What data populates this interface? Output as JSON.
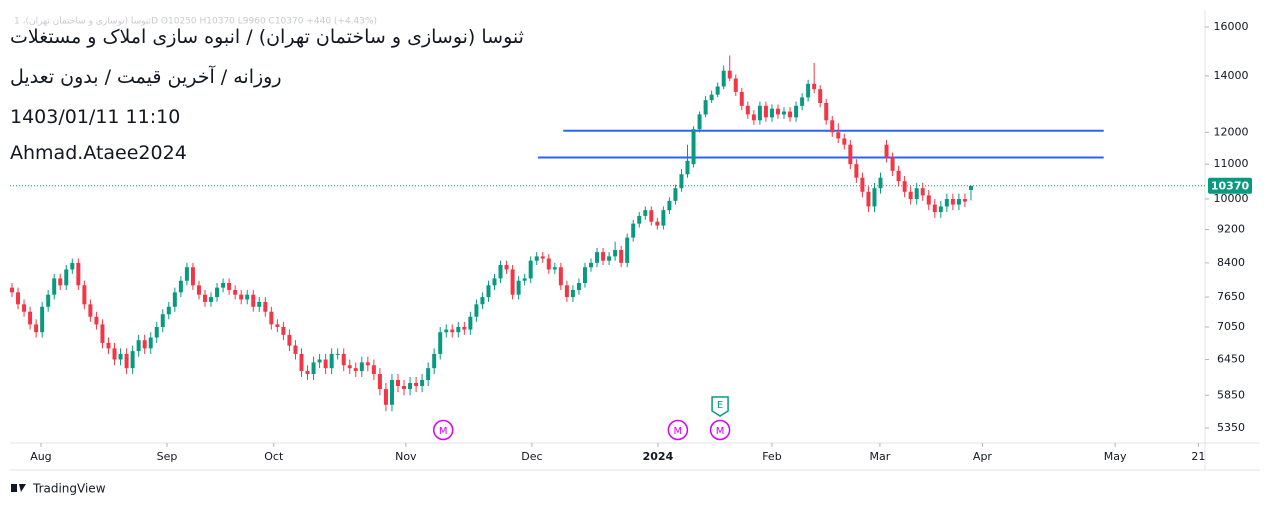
{
  "chart_data": {
    "type": "candlestick",
    "legend_text": "ثنوسا (نوسازی و ساختمان تهران)، 1D  O10250  H10370  L9960  C10370  +440 (+4.43%)",
    "title_lines": [
      "ثنوسا (نوسازی و ساختمان تهران) / انبوه سازی املاک و مستغلات",
      "روزانه / آخرین قیمت / بدون تعدیل",
      "1403/01/11 11:10",
      "Ahmad.Ataee2024"
    ],
    "log_scale": true,
    "up_color": "#089981",
    "down_color": "#f23645",
    "ylim": [
      5135,
      16760
    ],
    "yticks": [
      5350,
      5850,
      6450,
      7050,
      7650,
      8400,
      9200,
      10000,
      11000,
      12000,
      14000,
      16000
    ],
    "xlim": [
      -0.33,
      197.8
    ],
    "xticks": [
      {
        "value": 4.8,
        "label": "Aug"
      },
      {
        "value": 25.7,
        "label": "Sep"
      },
      {
        "value": 43.4,
        "label": "Oct"
      },
      {
        "value": 65.3,
        "label": "Nov"
      },
      {
        "value": 86.2,
        "label": "Dec"
      },
      {
        "value": 107.1,
        "label": "2024"
      },
      {
        "value": 126.0,
        "label": "Feb"
      },
      {
        "value": 143.9,
        "label": "Mar"
      },
      {
        "value": 160.9,
        "label": "Apr"
      },
      {
        "value": 182.9,
        "label": "May"
      },
      {
        "value": 196.7,
        "label": "21"
      }
    ],
    "open": [
      7850,
      7750,
      7500,
      7350,
      7100,
      6950,
      7450,
      7700,
      8050,
      7900,
      8250,
      8400,
      7900,
      7500,
      7250,
      7100,
      6750,
      6650,
      6450,
      6550,
      6300,
      6600,
      6800,
      6650,
      6850,
      7050,
      7300,
      7450,
      7750,
      8000,
      8300,
      7900,
      7700,
      7550,
      7650,
      7850,
      7950,
      7800,
      7700,
      7600,
      7700,
      7450,
      7550,
      7350,
      7100,
      7050,
      6900,
      6700,
      6550,
      6250,
      6200,
      6400,
      6450,
      6300,
      6550,
      6550,
      6350,
      6300,
      6250,
      6400,
      6350,
      6200,
      5950,
      5700,
      6100,
      6000,
      5950,
      6050,
      6000,
      6100,
      6300,
      6550,
      6950,
      7000,
      6950,
      7050,
      7000,
      7250,
      7500,
      7650,
      7900,
      8050,
      8350,
      8250,
      7700,
      8000,
      8050,
      8450,
      8550,
      8500,
      8250,
      8300,
      7900,
      7650,
      7800,
      7950,
      8300,
      8400,
      8650,
      8450,
      8550,
      8700,
      8400,
      9000,
      9350,
      9550,
      9700,
      9400,
      9300,
      9700,
      9950,
      10300,
      10700,
      11000,
      12100,
      12600,
      13100,
      13300,
      13600,
      14200,
      13900,
      13400,
      12900,
      12600,
      12400,
      12900,
      12500,
      12800,
      12600,
      12700,
      12500,
      12900,
      13200,
      13700,
      13500,
      13000,
      12400,
      12000,
      11800,
      11600,
      11000,
      10600,
      10200,
      9800,
      10300,
      11600,
      11200,
      10800,
      10500,
      10200,
      10000,
      10300,
      10100,
      9850,
      9650,
      9800,
      10000,
      9850,
      10000,
      10250
    ],
    "high": [
      7950,
      7850,
      7600,
      7450,
      7200,
      7550,
      7800,
      8150,
      8150,
      8350,
      8500,
      8500,
      8000,
      7600,
      7350,
      7200,
      6850,
      6750,
      6650,
      6650,
      6700,
      6900,
      6900,
      6950,
      7150,
      7400,
      7550,
      7850,
      8100,
      8400,
      8400,
      8000,
      7800,
      7750,
      7950,
      8050,
      8050,
      7900,
      7800,
      7800,
      7800,
      7650,
      7650,
      7450,
      7200,
      7150,
      7000,
      6800,
      6650,
      6350,
      6500,
      6550,
      6550,
      6650,
      6650,
      6650,
      6450,
      6400,
      6500,
      6500,
      6450,
      6300,
      6050,
      6200,
      6200,
      6100,
      6150,
      6150,
      6200,
      6400,
      6650,
      7050,
      7100,
      7100,
      7150,
      7150,
      7350,
      7600,
      7750,
      8000,
      8150,
      8450,
      8450,
      8350,
      8100,
      8150,
      8550,
      8650,
      8650,
      8600,
      8400,
      8400,
      8000,
      7900,
      8050,
      8400,
      8500,
      8750,
      8750,
      8650,
      8900,
      8800,
      9100,
      9450,
      9650,
      9800,
      9800,
      9500,
      9800,
      10050,
      10400,
      10850,
      11600,
      12200,
      12700,
      13250,
      13450,
      13750,
      14400,
      14800,
      14050,
      13550,
      13050,
      12750,
      13050,
      13050,
      12950,
      12950,
      12850,
      12850,
      13050,
      13350,
      13850,
      14500,
      13650,
      13150,
      12550,
      12300,
      11950,
      11750,
      11150,
      10750,
      10350,
      10450,
      10750,
      11750,
      11350,
      10950,
      10650,
      10350,
      10450,
      10450,
      10250,
      10000,
      9950,
      10150,
      10150,
      10150,
      10150,
      10370
    ],
    "low": [
      7650,
      7400,
      7250,
      7000,
      6850,
      6850,
      7350,
      7600,
      7800,
      7800,
      8150,
      7800,
      7400,
      7150,
      7000,
      6650,
      6550,
      6350,
      6350,
      6200,
      6200,
      6500,
      6550,
      6550,
      6750,
      6950,
      7200,
      7350,
      7650,
      7900,
      7800,
      7600,
      7450,
      7450,
      7550,
      7750,
      7700,
      7600,
      7500,
      7500,
      7350,
      7350,
      7250,
      7000,
      6950,
      6800,
      6600,
      6450,
      6150,
      6100,
      6100,
      6300,
      6200,
      6200,
      6450,
      6250,
      6200,
      6150,
      6150,
      6250,
      6100,
      5850,
      5600,
      5600,
      5900,
      5850,
      5850,
      5900,
      5900,
      6000,
      6200,
      6450,
      6850,
      6850,
      6850,
      6900,
      6900,
      7150,
      7400,
      7550,
      7800,
      7950,
      8150,
      7600,
      7600,
      7900,
      7950,
      8350,
      8400,
      8150,
      8150,
      7800,
      7550,
      7550,
      7700,
      7850,
      8200,
      8300,
      8350,
      8350,
      8450,
      8300,
      8300,
      8900,
      9250,
      9450,
      9300,
      9200,
      9200,
      9600,
      9850,
      10200,
      10600,
      10900,
      12000,
      12500,
      13000,
      13200,
      13500,
      13800,
      13250,
      12750,
      12450,
      12250,
      12250,
      12350,
      12350,
      12450,
      12450,
      12350,
      12350,
      12750,
      13050,
      13350,
      12850,
      12250,
      11850,
      11650,
      11450,
      10850,
      10450,
      10050,
      9650,
      9650,
      10150,
      11050,
      10650,
      10350,
      10050,
      9850,
      9850,
      9950,
      9700,
      9500,
      9500,
      9650,
      9700,
      9700,
      9780,
      9960
    ],
    "close": [
      7750,
      7500,
      7350,
      7100,
      6950,
      7450,
      7700,
      8050,
      7900,
      8250,
      8400,
      7900,
      7500,
      7250,
      7100,
      6750,
      6650,
      6450,
      6550,
      6300,
      6600,
      6800,
      6650,
      6850,
      7050,
      7300,
      7450,
      7750,
      8000,
      8300,
      7900,
      7700,
      7550,
      7650,
      7850,
      7950,
      7800,
      7700,
      7600,
      7700,
      7450,
      7550,
      7350,
      7100,
      7050,
      6900,
      6700,
      6550,
      6250,
      6200,
      6400,
      6450,
      6300,
      6550,
      6550,
      6350,
      6300,
      6250,
      6400,
      6350,
      6200,
      5950,
      5700,
      6100,
      6000,
      5950,
      6050,
      6000,
      6100,
      6300,
      6550,
      6950,
      7000,
      6950,
      7050,
      7000,
      7250,
      7500,
      7650,
      7900,
      8050,
      8350,
      8250,
      7700,
      8000,
      8050,
      8450,
      8550,
      8500,
      8250,
      8300,
      7900,
      7650,
      7800,
      7950,
      8300,
      8400,
      8650,
      8450,
      8550,
      8700,
      8400,
      9000,
      9350,
      9550,
      9700,
      9400,
      9300,
      9700,
      9950,
      10300,
      10700,
      11100,
      12100,
      12600,
      13100,
      13300,
      13600,
      14200,
      13900,
      13400,
      12900,
      12600,
      12400,
      12900,
      12500,
      12800,
      12600,
      12700,
      12500,
      12900,
      13200,
      13700,
      13500,
      13000,
      12400,
      12000,
      11800,
      11600,
      11000,
      10600,
      10200,
      9800,
      10300,
      10600,
      11200,
      10800,
      10500,
      10200,
      10000,
      10300,
      10100,
      9850,
      9650,
      9800,
      10000,
      9850,
      10000,
      9930,
      10370
    ],
    "h_lines": [
      {
        "price": 12050,
        "from": 91.4,
        "to": 181.0,
        "color": "#2962ff"
      },
      {
        "price": 11200,
        "from": 87.2,
        "to": 181.0,
        "color": "#2962ff"
      }
    ],
    "events": [
      {
        "label": "M",
        "x": 71.5,
        "color": "#d500f9"
      },
      {
        "label": "M",
        "x": 110.4,
        "color": "#d500f9"
      },
      {
        "label": "M",
        "x": 117.4,
        "color": "#d500f9"
      },
      {
        "label": "E",
        "x": 117.4,
        "color": "#089981"
      }
    ]
  },
  "branding": "TradingView"
}
